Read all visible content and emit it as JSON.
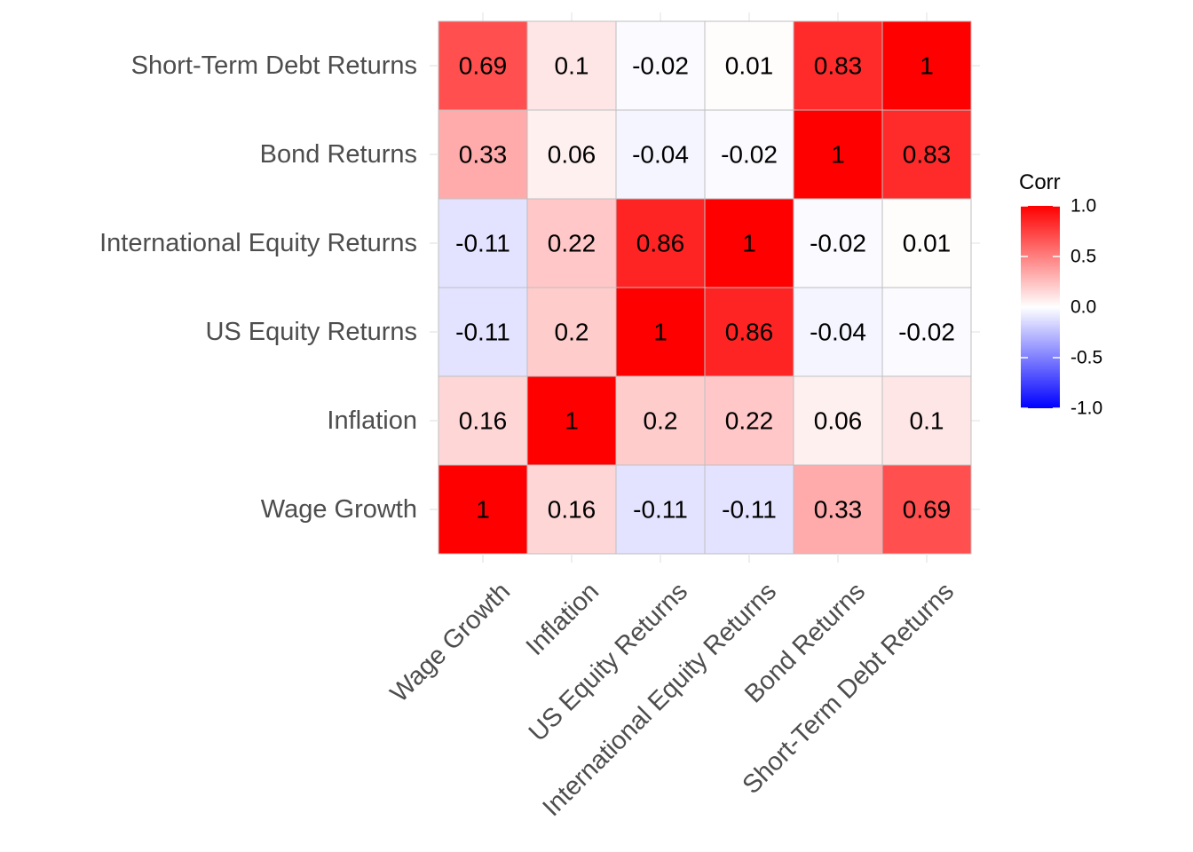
{
  "chart_data": {
    "type": "heatmap",
    "title": "",
    "xlabel": "",
    "ylabel": "",
    "x_categories": [
      "Wage Growth",
      "Inflation",
      "US Equity Returns",
      "International Equity Returns",
      "Bond Returns",
      "Short-Term Debt Returns"
    ],
    "y_categories": [
      "Wage Growth",
      "Inflation",
      "US Equity Returns",
      "International Equity Returns",
      "Bond Returns",
      "Short-Term Debt Returns"
    ],
    "values": [
      [
        1,
        0.16,
        -0.11,
        -0.11,
        0.33,
        0.69
      ],
      [
        0.16,
        1,
        0.2,
        0.22,
        0.06,
        0.1
      ],
      [
        -0.11,
        0.2,
        1,
        0.86,
        -0.04,
        -0.02
      ],
      [
        -0.11,
        0.22,
        0.86,
        1,
        -0.02,
        0.01
      ],
      [
        0.33,
        0.06,
        -0.04,
        -0.02,
        1,
        0.83
      ],
      [
        0.69,
        0.1,
        -0.02,
        0.01,
        0.83,
        1
      ]
    ],
    "value_labels": [
      [
        "1",
        "0.16",
        "-0.11",
        "-0.11",
        "0.33",
        "0.69"
      ],
      [
        "0.16",
        "1",
        "0.2",
        "0.22",
        "0.06",
        "0.1"
      ],
      [
        "-0.11",
        "0.2",
        "1",
        "0.86",
        "-0.04",
        "-0.02"
      ],
      [
        "-0.11",
        "0.22",
        "0.86",
        "1",
        "-0.02",
        "0.01"
      ],
      [
        "0.33",
        "0.06",
        "-0.04",
        "-0.02",
        "1",
        "0.83"
      ],
      [
        "0.69",
        "0.1",
        "-0.02",
        "0.01",
        "0.83",
        "1"
      ]
    ],
    "legend": {
      "title": "Corr",
      "placement": "right",
      "limits": [
        -1,
        1
      ],
      "ticks": [
        1.0,
        0.5,
        0.0,
        -0.5,
        -1.0
      ],
      "tick_labels": [
        "1.0",
        "0.5",
        "0.0",
        "-0.5",
        "-1.0"
      ],
      "colors": {
        "low": "#0000ff",
        "mid": "#ffffff",
        "high": "#ff0000"
      }
    },
    "grid": true,
    "cell_border_color": "#bfbfbf"
  }
}
